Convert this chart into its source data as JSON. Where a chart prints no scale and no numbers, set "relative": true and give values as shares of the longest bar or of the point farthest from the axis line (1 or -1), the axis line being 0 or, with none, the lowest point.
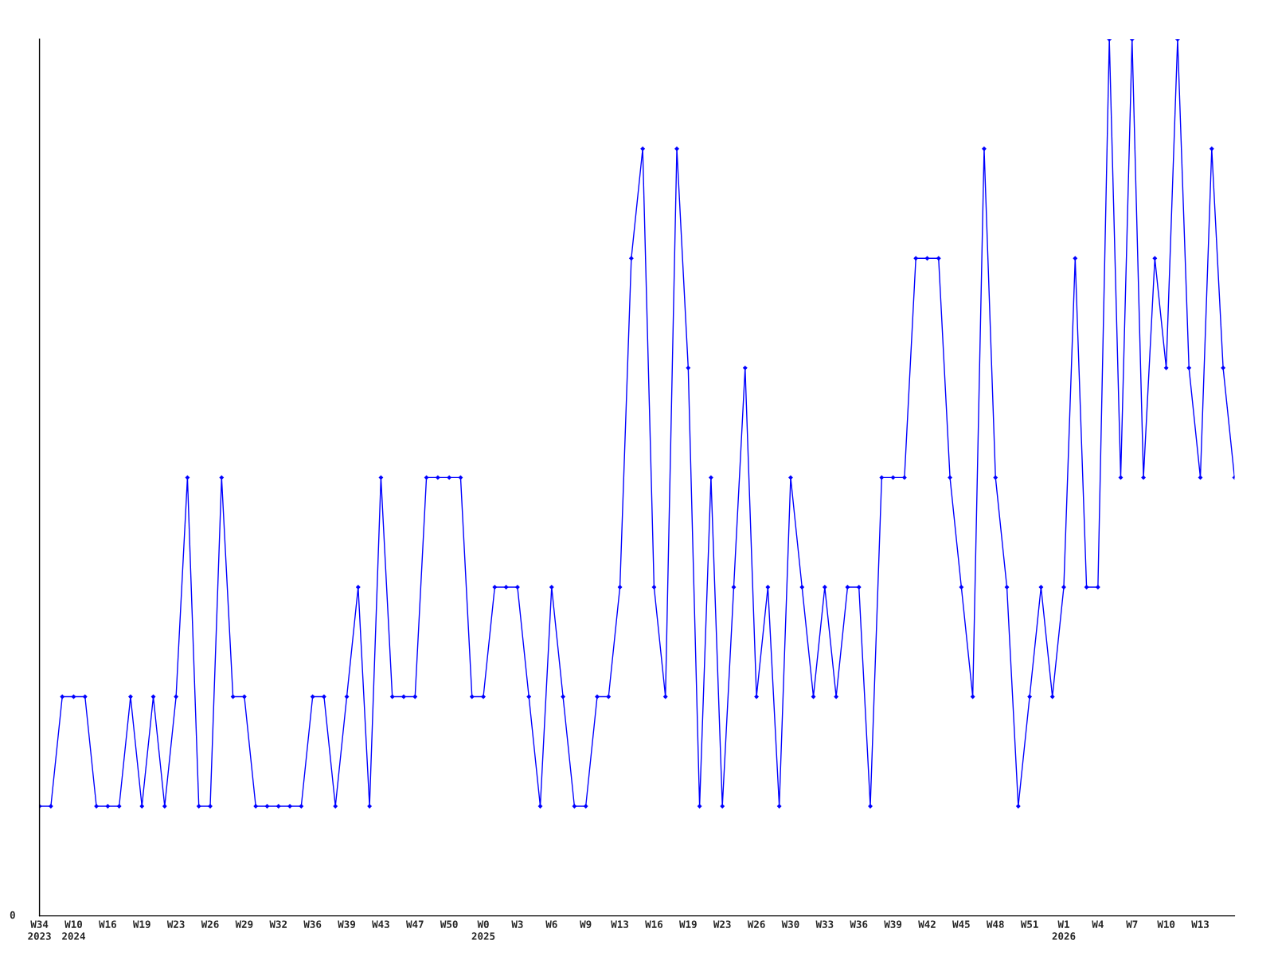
{
  "chart_data": {
    "type": "line",
    "relative": true,
    "marker": "diamond",
    "line_style": "solid",
    "grid": false,
    "legend": false,
    "annotations": [
      "0"
    ],
    "categories": [
      "W34\n2023",
      null,
      null,
      "W10\n2024",
      null,
      null,
      "W16",
      null,
      null,
      "W19",
      null,
      null,
      "W23",
      null,
      null,
      "W26",
      null,
      null,
      "W29",
      null,
      null,
      "W32",
      null,
      null,
      "W36",
      null,
      null,
      "W39",
      null,
      null,
      "W43",
      null,
      null,
      "W47",
      null,
      null,
      "W50",
      null,
      null,
      "W0\n2025",
      null,
      null,
      "W3",
      null,
      null,
      "W6",
      null,
      null,
      "W9",
      null,
      null,
      "W13",
      null,
      null,
      "W16",
      null,
      null,
      "W19",
      null,
      null,
      "W23",
      null,
      null,
      "W26",
      null,
      null,
      "W30",
      null,
      null,
      "W33",
      null,
      null,
      "W36",
      null,
      null,
      "W39",
      null,
      null,
      "W42",
      null,
      null,
      "W45",
      null,
      null,
      "W48",
      null,
      null,
      "W51",
      null,
      null,
      "W1\n2026",
      null,
      null,
      "W4",
      null,
      null,
      "W7",
      null,
      null,
      "W10",
      null,
      null,
      "W13",
      null,
      null,
      null
    ],
    "series": [
      {
        "color": "#0000ff",
        "values": [
          0.125,
          0.125,
          0.25,
          0.25,
          0.25,
          0.125,
          0.125,
          0.125,
          0.25,
          0.125,
          0.25,
          0.125,
          0.25,
          0.5,
          0.125,
          0.125,
          0.5,
          0.25,
          0.25,
          0.125,
          0.125,
          0.125,
          0.125,
          0.125,
          0.25,
          0.25,
          0.125,
          0.25,
          0.375,
          0.125,
          0.5,
          0.25,
          0.25,
          0.25,
          0.5,
          0.5,
          0.5,
          0.5,
          0.25,
          0.25,
          0.375,
          0.375,
          0.375,
          0.25,
          0.125,
          0.375,
          0.25,
          0.125,
          0.125,
          0.25,
          0.25,
          0.375,
          0.75,
          0.875,
          0.375,
          0.25,
          0.875,
          0.625,
          0.125,
          0.5,
          0.125,
          0.375,
          0.625,
          0.25,
          0.375,
          0.125,
          0.5,
          0.375,
          0.25,
          0.375,
          0.25,
          0.375,
          0.375,
          0.125,
          0.5,
          0.5,
          0.5,
          0.75,
          0.75,
          0.75,
          0.5,
          0.375,
          0.25,
          0.875,
          0.5,
          0.375,
          0.125,
          0.25,
          0.375,
          0.25,
          0.375,
          0.75,
          0.375,
          0.375,
          1,
          0.5,
          1,
          0.5,
          0.75,
          0.625,
          1,
          0.625,
          0.5,
          0.875,
          0.625,
          0.5
        ]
      }
    ]
  }
}
